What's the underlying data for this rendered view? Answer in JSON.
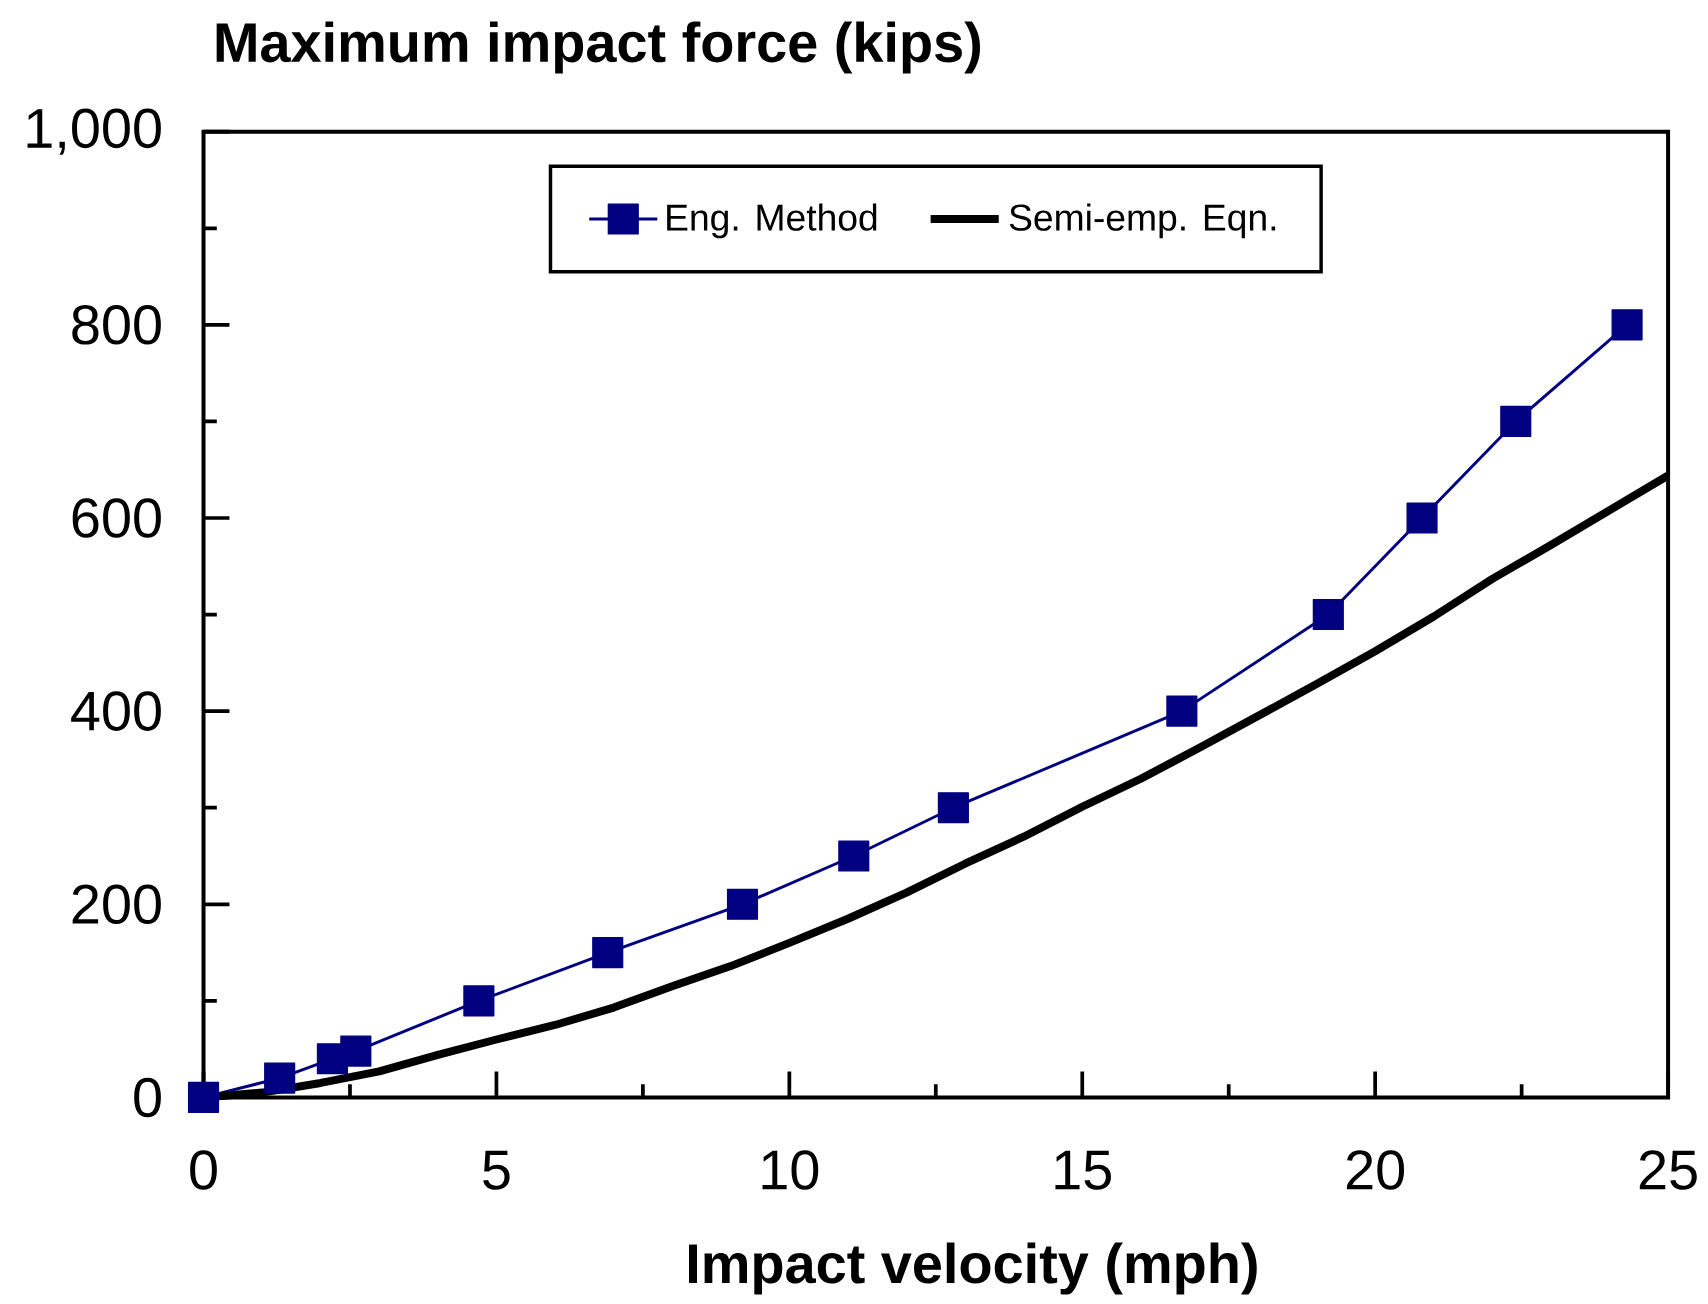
{
  "chart_data": {
    "type": "line",
    "ylabel": "Maximum impact force (kips)",
    "xlabel": "Impact velocity (mph)",
    "xlim": [
      0,
      25
    ],
    "xticks": [
      0,
      {
        "value": 2.5,
        "label": null
      },
      5,
      {
        "value": 7.5,
        "label": null
      },
      10,
      {
        "value": 12.5,
        "label": null
      },
      15,
      {
        "value": 17.5,
        "label": null
      },
      20,
      {
        "value": 22.5,
        "label": null
      },
      25
    ],
    "ylim": [
      0,
      1000
    ],
    "yticks": [
      0,
      {
        "value": 100,
        "label": null
      },
      200,
      {
        "value": 300,
        "label": null
      },
      400,
      {
        "value": 500,
        "label": null
      },
      600,
      {
        "value": 700,
        "label": null
      },
      800,
      {
        "value": 900,
        "label": null
      },
      {
        "value": 1000,
        "label": "1,000"
      }
    ],
    "legend": "top",
    "series": [
      {
        "name": "Eng. Method",
        "color": "#000080",
        "marker": "square",
        "line_style": "solid",
        "x": [
          0,
          1.3,
          2.2,
          2.6,
          4.7,
          6.9,
          9.2,
          11.1,
          12.8,
          16.7,
          19.2,
          20.8,
          22.4,
          24.3
        ],
        "values": [
          0,
          20,
          40,
          48,
          100,
          150,
          200,
          250,
          300,
          400,
          500,
          600,
          700,
          800
        ]
      },
      {
        "name": "Semi-emp. Eqn.",
        "color": "#000000",
        "marker": "none",
        "line_style": "solid",
        "x": [
          0,
          1,
          2,
          3,
          4,
          5,
          6,
          7,
          8,
          9,
          10,
          11,
          12,
          13,
          14,
          15,
          16,
          17,
          18,
          19,
          20,
          21,
          22,
          23,
          24,
          25
        ],
        "values": [
          0,
          5,
          15,
          27,
          44,
          60,
          75,
          93,
          115,
          136,
          160,
          185,
          212,
          242,
          270,
          301,
          330,
          362,
          395,
          428,
          462,
          498,
          537,
          572,
          608,
          644
        ]
      }
    ]
  }
}
